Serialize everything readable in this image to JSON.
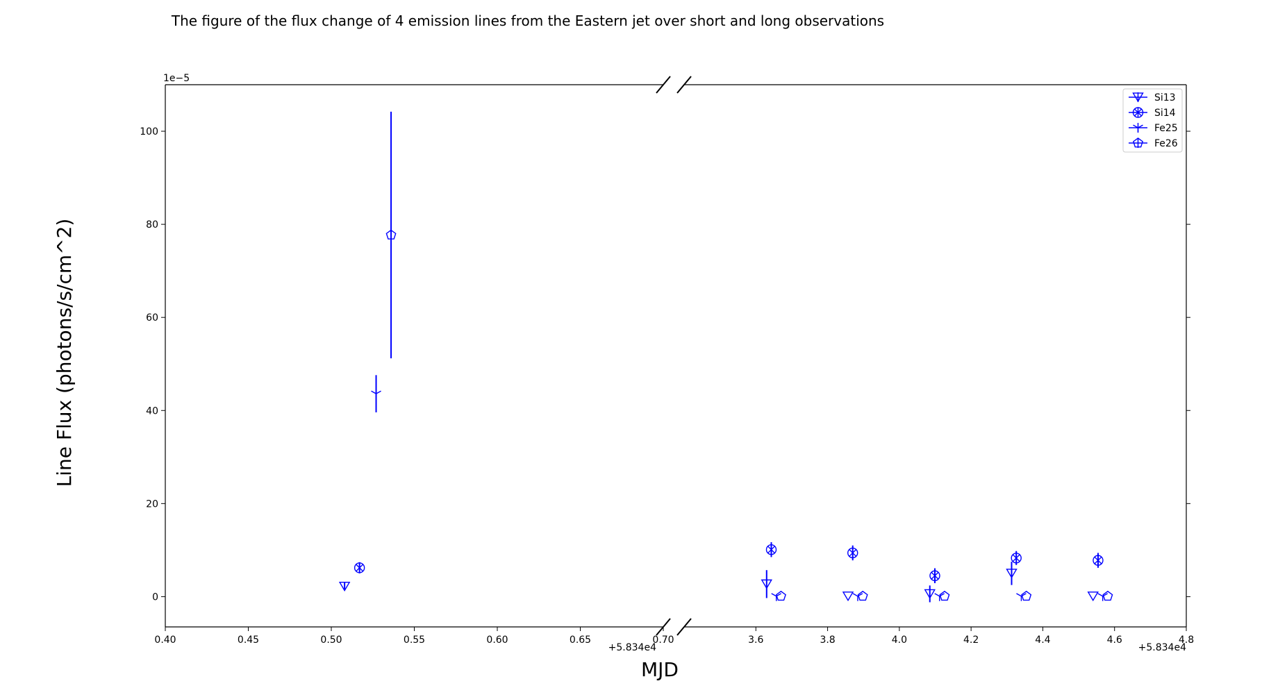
{
  "chart_data": {
    "type": "scatter",
    "title": "The figure of the flux change of 4 emission lines from the Eastern jet over short and long observations",
    "xlabel": "MJD",
    "ylabel": "Line Flux (photons/s/cm^2)",
    "y_scale_label": "1e−5",
    "x_offset_label": "+5.834e4",
    "broken_x_axis": true,
    "ylim": [
      -6.5,
      110
    ],
    "y_ticks": [
      0,
      20,
      40,
      60,
      80,
      100
    ],
    "y_tick_labels": [
      "0",
      "20",
      "40",
      "60",
      "80",
      "100"
    ],
    "panels": [
      {
        "xlim": [
          0.4,
          0.7
        ],
        "x_ticks": [
          0.4,
          0.45,
          0.5,
          0.55,
          0.6,
          0.65,
          0.7
        ],
        "x_tick_labels": [
          "0.40",
          "0.45",
          "0.50",
          "0.55",
          "0.60",
          "0.65",
          "0.70"
        ]
      },
      {
        "xlim": [
          3.4,
          4.8
        ],
        "x_ticks": [
          3.6,
          3.8,
          4.0,
          4.2,
          4.4,
          4.6,
          4.8
        ],
        "x_tick_labels": [
          "3.6",
          "3.8",
          "4.0",
          "4.2",
          "4.4",
          "4.6",
          "4.8"
        ]
      }
    ],
    "legend_position": "top-right",
    "series": [
      {
        "name": "Si13",
        "marker": "triangle-down",
        "color": "#0000ff",
        "points": [
          {
            "x": 0.508,
            "y": 2.2,
            "err": 0.8
          },
          {
            "x": 3.63,
            "y": 2.7,
            "err": 3.0
          },
          {
            "x": 3.857,
            "y": 0.1,
            "err": 0.0
          },
          {
            "x": 4.085,
            "y": 0.6,
            "err": 1.8
          },
          {
            "x": 4.313,
            "y": 5.0,
            "err": 2.5
          },
          {
            "x": 4.54,
            "y": 0.1,
            "err": 0.0
          }
        ]
      },
      {
        "name": "Si14",
        "marker": "circle-x",
        "color": "#0000ff",
        "points": [
          {
            "x": 0.517,
            "y": 6.2,
            "err": 1.2
          },
          {
            "x": 3.643,
            "y": 10.1,
            "err": 1.6
          },
          {
            "x": 3.87,
            "y": 9.4,
            "err": 1.6
          },
          {
            "x": 4.099,
            "y": 4.5,
            "err": 1.6
          },
          {
            "x": 4.326,
            "y": 8.3,
            "err": 1.5
          },
          {
            "x": 4.554,
            "y": 7.8,
            "err": 1.6
          }
        ]
      },
      {
        "name": "Fe25",
        "marker": "tri-down",
        "color": "#0000ff",
        "points": [
          {
            "x": 0.527,
            "y": 43.6,
            "err": 4.0
          },
          {
            "x": 3.657,
            "y": 0.1,
            "err": 0.0
          },
          {
            "x": 3.884,
            "y": 0.1,
            "err": 0.0
          },
          {
            "x": 4.112,
            "y": 0.1,
            "err": 0.0
          },
          {
            "x": 4.34,
            "y": 0.1,
            "err": 0.0
          },
          {
            "x": 4.567,
            "y": 0.1,
            "err": 0.0
          }
        ]
      },
      {
        "name": "Fe26",
        "marker": "pentagon",
        "color": "#0000ff",
        "points": [
          {
            "x": 0.536,
            "y": 77.7,
            "err": 26.5
          },
          {
            "x": 3.67,
            "y": 0.1,
            "err": 0.0
          },
          {
            "x": 3.898,
            "y": 0.1,
            "err": 0.0
          },
          {
            "x": 4.126,
            "y": 0.1,
            "err": 0.0
          },
          {
            "x": 4.354,
            "y": 0.1,
            "err": 0.0
          },
          {
            "x": 4.581,
            "y": 0.1,
            "err": 0.0
          }
        ]
      }
    ]
  }
}
